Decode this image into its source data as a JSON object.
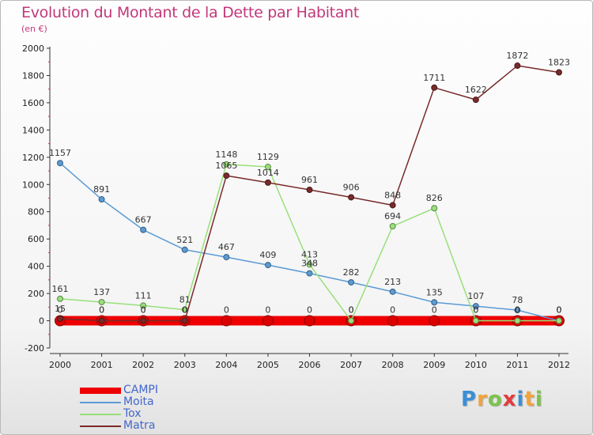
{
  "title": "Evolution du Montant de la Dette par Habitant",
  "subtitle": "(en €)",
  "logo": {
    "letters": [
      "P",
      "r",
      "o",
      "x",
      "i",
      "t",
      "i"
    ],
    "colors": [
      "#3b8fd6",
      "#f2a33a",
      "#7cc34a",
      "#e23b3b",
      "#3b8fd6",
      "#f2a33a",
      "#7cc34a"
    ]
  },
  "chart_data": {
    "type": "line",
    "title": "Evolution du Montant de la Dette par Habitant",
    "subtitle": "(en €)",
    "x": [
      "2000",
      "2001",
      "2002",
      "2003",
      "2004",
      "2005",
      "2006",
      "2007",
      "2008",
      "2009",
      "2010",
      "2011",
      "2012"
    ],
    "ylim": [
      -200,
      2000
    ],
    "yticks": [
      -200,
      0,
      200,
      400,
      600,
      800,
      1000,
      1200,
      1400,
      1600,
      1800,
      2000
    ],
    "legend_position": "bottom-left",
    "series": [
      {
        "name": "CAMPI",
        "color": "#ee0000",
        "values": [
          0,
          0,
          0,
          0,
          0,
          0,
          0,
          0,
          0,
          0,
          0,
          0,
          0
        ],
        "labels": [
          "0",
          "0",
          "0",
          "0",
          "0",
          "0",
          "0",
          "0",
          "0",
          "0",
          "0",
          "0",
          "0"
        ]
      },
      {
        "name": "Moita",
        "color": "#5b9bd5",
        "values": [
          1157,
          891,
          667,
          521,
          467,
          409,
          348,
          282,
          213,
          135,
          107,
          78,
          0
        ],
        "labels": [
          "1157",
          "891",
          "667",
          "521",
          "467",
          "409",
          "348",
          "282",
          "213",
          "135",
          "107",
          "78",
          "0"
        ]
      },
      {
        "name": "Tox",
        "color": "#99e07a",
        "values": [
          161,
          137,
          111,
          81,
          1148,
          1129,
          413,
          0,
          694,
          826,
          0,
          0,
          0
        ],
        "labels": [
          "161",
          "137",
          "111",
          "81",
          "1148",
          "1129",
          "413",
          "0",
          "694",
          "826",
          "0",
          "0",
          "0"
        ]
      },
      {
        "name": "Matra",
        "color": "#7a2a2a",
        "values": [
          15,
          0,
          0,
          0,
          1065,
          1014,
          961,
          906,
          848,
          1711,
          1622,
          1872,
          1823
        ],
        "labels": [
          "15",
          "0",
          "0",
          "0",
          "1065",
          "1014",
          "961",
          "906",
          "848",
          "1711",
          "1622",
          "1872",
          "1823"
        ]
      }
    ]
  }
}
